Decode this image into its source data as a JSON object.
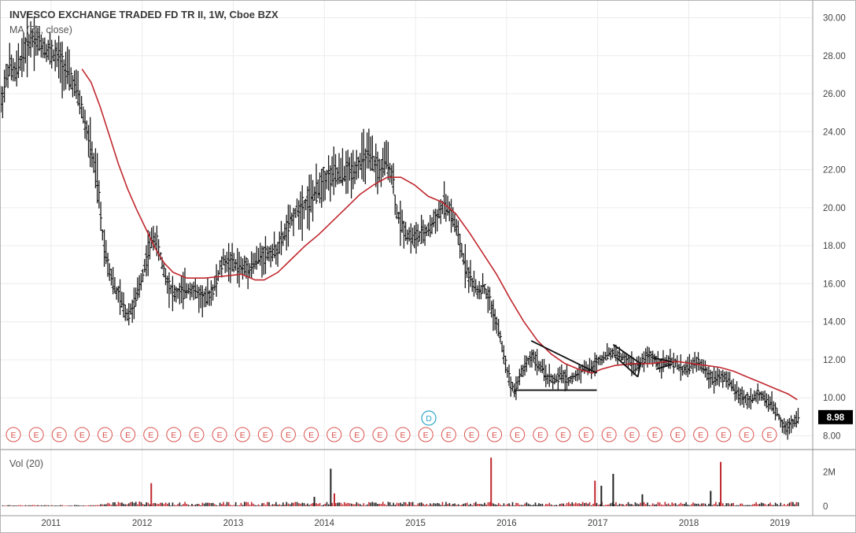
{
  "header": {
    "title": "INVESCO EXCHANGE TRADED FD TR II, 1W, Cboe BZX",
    "indicator_label": "MA (50, close)",
    "volume_label": "Vol (20)",
    "last_price_label": "8.98"
  },
  "colors": {
    "candle": "#1a1a1a",
    "ma_line": "#c0282e",
    "volume_up": "#222222",
    "volume_down": "#c0282e",
    "earnings_marker": "#d9534f",
    "dividend_marker": "#2aa5c6",
    "grid": "#ececec",
    "price_tag_bg": "#000000"
  },
  "markers": {
    "earnings_letter": "E",
    "dividend_letter": "D",
    "earnings_count": 34
  },
  "chart_data": {
    "type": "candlestick",
    "timeframe": "1W",
    "price_axis": {
      "ticks": [
        "30.00",
        "28.00",
        "26.00",
        "24.00",
        "22.00",
        "20.00",
        "18.00",
        "16.00",
        "14.00",
        "12.00",
        "10.00",
        "8.00"
      ],
      "range": [
        7.4,
        30.6
      ]
    },
    "volume_axis": {
      "ticks": [
        "2M",
        "0"
      ],
      "range": [
        0,
        3000000
      ]
    },
    "x_axis": {
      "ticks": [
        "2011",
        "2012",
        "2013",
        "2014",
        "2015",
        "2016",
        "2017",
        "2018",
        "2019"
      ],
      "range": [
        2010.45,
        2019.37
      ]
    },
    "price_path": [
      [
        2010.46,
        25.5
      ],
      [
        2010.55,
        27.5
      ],
      [
        2010.62,
        27.0
      ],
      [
        2010.7,
        28.1
      ],
      [
        2010.8,
        29.0
      ],
      [
        2010.9,
        28.6
      ],
      [
        2011.0,
        28.2
      ],
      [
        2011.1,
        27.8
      ],
      [
        2011.2,
        27.0
      ],
      [
        2011.3,
        26.1
      ],
      [
        2011.38,
        24.5
      ],
      [
        2011.45,
        23.0
      ],
      [
        2011.52,
        21.3
      ],
      [
        2011.58,
        18.4
      ],
      [
        2011.65,
        16.8
      ],
      [
        2011.72,
        15.6
      ],
      [
        2011.77,
        15.2
      ],
      [
        2011.84,
        14.4
      ],
      [
        2011.92,
        14.8
      ],
      [
        2012.0,
        16.2
      ],
      [
        2012.07,
        17.6
      ],
      [
        2012.14,
        18.6
      ],
      [
        2012.2,
        17.6
      ],
      [
        2012.28,
        16.2
      ],
      [
        2012.36,
        15.4
      ],
      [
        2012.45,
        15.6
      ],
      [
        2012.55,
        15.8
      ],
      [
        2012.65,
        15.3
      ],
      [
        2012.72,
        15.2
      ],
      [
        2012.8,
        15.8
      ],
      [
        2012.9,
        17.2
      ],
      [
        2013.0,
        17.1
      ],
      [
        2013.1,
        16.8
      ],
      [
        2013.2,
        16.9
      ],
      [
        2013.3,
        17.4
      ],
      [
        2013.4,
        17.6
      ],
      [
        2013.5,
        17.8
      ],
      [
        2013.6,
        18.9
      ],
      [
        2013.7,
        19.8
      ],
      [
        2013.8,
        20.2
      ],
      [
        2013.9,
        20.6
      ],
      [
        2014.0,
        21.5
      ],
      [
        2014.1,
        21.7
      ],
      [
        2014.2,
        21.8
      ],
      [
        2014.3,
        21.9
      ],
      [
        2014.4,
        22.4
      ],
      [
        2014.48,
        22.7
      ],
      [
        2014.55,
        22.4
      ],
      [
        2014.62,
        21.8
      ],
      [
        2014.7,
        22.6
      ],
      [
        2014.76,
        21.6
      ],
      [
        2014.8,
        19.8
      ],
      [
        2014.85,
        19.2
      ],
      [
        2014.92,
        18.6
      ],
      [
        2015.0,
        18.4
      ],
      [
        2015.1,
        18.6
      ],
      [
        2015.18,
        19.0
      ],
      [
        2015.25,
        19.6
      ],
      [
        2015.32,
        20.1
      ],
      [
        2015.38,
        19.9
      ],
      [
        2015.45,
        19.0
      ],
      [
        2015.52,
        17.6
      ],
      [
        2015.6,
        16.4
      ],
      [
        2015.68,
        15.6
      ],
      [
        2015.76,
        15.8
      ],
      [
        2015.84,
        14.8
      ],
      [
        2015.92,
        13.6
      ],
      [
        2016.0,
        11.8
      ],
      [
        2016.05,
        10.8
      ],
      [
        2016.1,
        10.4
      ],
      [
        2016.16,
        11.2
      ],
      [
        2016.22,
        11.8
      ],
      [
        2016.3,
        12.2
      ],
      [
        2016.38,
        11.6
      ],
      [
        2016.46,
        11.1
      ],
      [
        2016.54,
        10.9
      ],
      [
        2016.62,
        11.2
      ],
      [
        2016.7,
        10.9
      ],
      [
        2016.78,
        11.2
      ],
      [
        2016.86,
        11.6
      ],
      [
        2016.94,
        11.5
      ],
      [
        2017.0,
        11.9
      ],
      [
        2017.06,
        12.1
      ],
      [
        2017.12,
        12.3
      ],
      [
        2017.2,
        12.4
      ],
      [
        2017.28,
        12.1
      ],
      [
        2017.36,
        11.9
      ],
      [
        2017.42,
        11.6
      ],
      [
        2017.48,
        11.8
      ],
      [
        2017.55,
        12.2
      ],
      [
        2017.62,
        12.1
      ],
      [
        2017.7,
        11.8
      ],
      [
        2017.78,
        11.9
      ],
      [
        2017.86,
        11.8
      ],
      [
        2017.94,
        11.5
      ],
      [
        2018.0,
        11.6
      ],
      [
        2018.06,
        11.8
      ],
      [
        2018.12,
        11.9
      ],
      [
        2018.2,
        11.3
      ],
      [
        2018.28,
        11.0
      ],
      [
        2018.36,
        11.2
      ],
      [
        2018.44,
        10.9
      ],
      [
        2018.52,
        10.4
      ],
      [
        2018.6,
        10.0
      ],
      [
        2018.66,
        9.9
      ],
      [
        2018.72,
        10.0
      ],
      [
        2018.8,
        10.2
      ],
      [
        2018.86,
        9.8
      ],
      [
        2018.92,
        9.6
      ],
      [
        2018.98,
        9.2
      ],
      [
        2019.04,
        8.6
      ],
      [
        2019.08,
        8.4
      ],
      [
        2019.12,
        8.6
      ],
      [
        2019.17,
        8.8
      ],
      [
        2019.21,
        8.98
      ]
    ],
    "ma_path": [
      [
        2011.35,
        27.3
      ],
      [
        2011.45,
        26.6
      ],
      [
        2011.55,
        25.3
      ],
      [
        2011.65,
        23.8
      ],
      [
        2011.75,
        22.3
      ],
      [
        2011.85,
        21.0
      ],
      [
        2011.95,
        19.9
      ],
      [
        2012.05,
        18.9
      ],
      [
        2012.15,
        17.9
      ],
      [
        2012.25,
        17.1
      ],
      [
        2012.35,
        16.6
      ],
      [
        2012.5,
        16.3
      ],
      [
        2012.7,
        16.3
      ],
      [
        2012.9,
        16.4
      ],
      [
        2013.1,
        16.5
      ],
      [
        2013.25,
        16.2
      ],
      [
        2013.35,
        16.2
      ],
      [
        2013.5,
        16.6
      ],
      [
        2013.65,
        17.3
      ],
      [
        2013.8,
        18.0
      ],
      [
        2013.95,
        18.6
      ],
      [
        2014.1,
        19.3
      ],
      [
        2014.25,
        20.0
      ],
      [
        2014.4,
        20.7
      ],
      [
        2014.55,
        21.2
      ],
      [
        2014.7,
        21.6
      ],
      [
        2014.85,
        21.6
      ],
      [
        2015.0,
        21.2
      ],
      [
        2015.15,
        20.6
      ],
      [
        2015.3,
        20.3
      ],
      [
        2015.45,
        19.7
      ],
      [
        2015.6,
        18.7
      ],
      [
        2015.75,
        17.6
      ],
      [
        2015.9,
        16.5
      ],
      [
        2016.05,
        15.2
      ],
      [
        2016.2,
        14.0
      ],
      [
        2016.35,
        13.0
      ],
      [
        2016.5,
        12.3
      ],
      [
        2016.65,
        11.8
      ],
      [
        2016.8,
        11.5
      ],
      [
        2016.95,
        11.3
      ],
      [
        2017.05,
        11.5
      ],
      [
        2017.2,
        11.7
      ],
      [
        2017.4,
        11.8
      ],
      [
        2017.6,
        11.8
      ],
      [
        2017.75,
        11.9
      ],
      [
        2017.9,
        11.9
      ],
      [
        2018.05,
        11.8
      ],
      [
        2018.2,
        11.7
      ],
      [
        2018.35,
        11.6
      ],
      [
        2018.5,
        11.4
      ],
      [
        2018.65,
        11.1
      ],
      [
        2018.8,
        10.8
      ],
      [
        2018.95,
        10.5
      ],
      [
        2019.1,
        10.2
      ],
      [
        2019.2,
        9.9
      ]
    ],
    "volume_spikes": [
      [
        2012.11,
        1350000,
        "down"
      ],
      [
        2013.9,
        550000,
        "up"
      ],
      [
        2014.08,
        2200000,
        "up"
      ],
      [
        2014.12,
        750000,
        "down"
      ],
      [
        2015.84,
        2850000,
        "down"
      ],
      [
        2016.98,
        1500000,
        "down"
      ],
      [
        2017.05,
        1200000,
        "up"
      ],
      [
        2017.18,
        1900000,
        "up"
      ],
      [
        2018.36,
        2600000,
        "down"
      ],
      [
        2017.5,
        700000,
        "up"
      ],
      [
        2018.25,
        900000,
        "up"
      ]
    ],
    "drawings": [
      {
        "name": "triangle-upper-trendline",
        "points": [
          [
            2016.28,
            13.0
          ],
          [
            2017.0,
            11.3
          ]
        ]
      },
      {
        "name": "triangle-base-line",
        "points": [
          [
            2016.1,
            10.4
          ],
          [
            2017.0,
            10.4
          ]
        ]
      },
      {
        "name": "pennant-upper-line",
        "points": [
          [
            2017.18,
            12.8
          ],
          [
            2017.48,
            11.8
          ]
        ]
      },
      {
        "name": "pennant-lower-line",
        "points": [
          [
            2017.22,
            12.1
          ],
          [
            2017.45,
            11.1
          ]
        ]
      },
      {
        "name": "pennant-apex-line",
        "points": [
          [
            2017.45,
            11.1
          ],
          [
            2017.48,
            11.8
          ]
        ]
      },
      {
        "name": "flag-upper-line",
        "points": [
          [
            2017.62,
            12.1
          ],
          [
            2017.82,
            11.9
          ]
        ]
      },
      {
        "name": "flag-lower-line",
        "points": [
          [
            2017.65,
            11.5
          ],
          [
            2017.82,
            11.75
          ]
        ]
      }
    ],
    "legend": "top-left",
    "grid": true
  }
}
